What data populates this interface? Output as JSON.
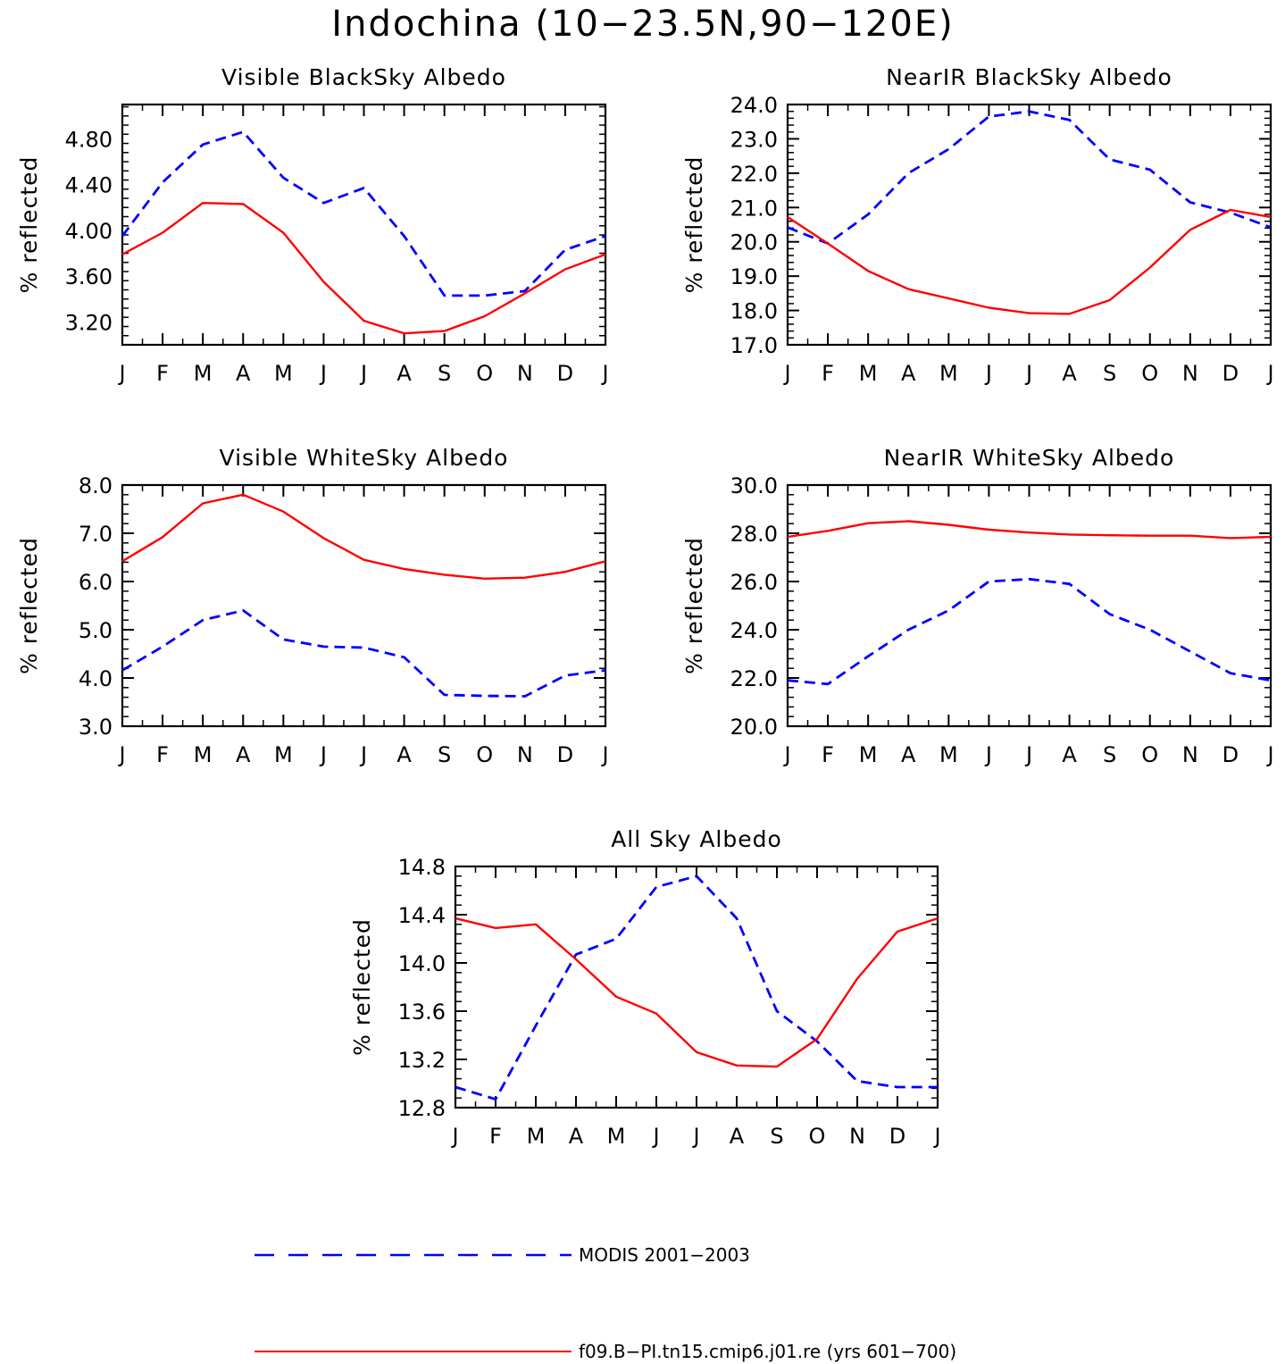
{
  "title": "Indochina (10−23.5N,90−120E)",
  "legend": [
    {
      "label": "MODIS 2001−2003",
      "color": "#0000ff",
      "dash": true
    },
    {
      "label": "f09.B−PI.tn15.cmip6.j01.re (yrs 601−700)",
      "color": "#ff0000",
      "dash": false
    }
  ],
  "chart_data": [
    {
      "type": "line",
      "title": "Visible BlackSky Albedo",
      "ylabel": "% reflected",
      "categories": [
        "J",
        "F",
        "M",
        "A",
        "M",
        "J",
        "J",
        "A",
        "S",
        "O",
        "N",
        "D",
        "J"
      ],
      "ylim": [
        3.0,
        5.1
      ],
      "yticks": [
        "3.20",
        "3.60",
        "4.00",
        "4.40",
        "4.80"
      ],
      "series": [
        {
          "name": "MODIS 2001−2003",
          "color": "#0000ff",
          "dash": true,
          "values": [
            3.95,
            4.42,
            4.75,
            4.86,
            4.46,
            4.24,
            4.37,
            3.95,
            3.43,
            3.43,
            3.47,
            3.83,
            3.95
          ]
        },
        {
          "name": "f09.B−PI.tn15.cmip6.j01.re (yrs 601−700)",
          "color": "#ff0000",
          "dash": false,
          "values": [
            3.79,
            3.98,
            4.24,
            4.23,
            3.98,
            3.55,
            3.21,
            3.1,
            3.12,
            3.25,
            3.45,
            3.66,
            3.79
          ]
        }
      ]
    },
    {
      "type": "line",
      "title": "NearIR BlackSky Albedo",
      "ylabel": "% reflected",
      "categories": [
        "J",
        "F",
        "M",
        "A",
        "M",
        "J",
        "J",
        "A",
        "S",
        "O",
        "N",
        "D",
        "J"
      ],
      "ylim": [
        17.0,
        24.0
      ],
      "yticks": [
        "17.0",
        "18.0",
        "19.0",
        "20.0",
        "21.0",
        "22.0",
        "23.0",
        "24.0"
      ],
      "series": [
        {
          "name": "MODIS 2001−2003",
          "color": "#0000ff",
          "dash": true,
          "values": [
            20.42,
            19.95,
            20.8,
            22.0,
            22.7,
            23.65,
            23.8,
            23.55,
            22.4,
            22.1,
            21.15,
            20.85,
            20.42
          ]
        },
        {
          "name": "f09.B−PI.tn15.cmip6.j01.re (yrs 601−700)",
          "color": "#ff0000",
          "dash": false,
          "values": [
            20.72,
            19.95,
            19.15,
            18.62,
            18.35,
            18.08,
            17.92,
            17.9,
            18.3,
            19.25,
            20.35,
            20.93,
            20.72
          ]
        }
      ]
    },
    {
      "type": "line",
      "title": "Visible WhiteSky Albedo",
      "ylabel": "% reflected",
      "categories": [
        "J",
        "F",
        "M",
        "A",
        "M",
        "J",
        "J",
        "A",
        "S",
        "O",
        "N",
        "D",
        "J"
      ],
      "ylim": [
        3.0,
        8.0
      ],
      "yticks": [
        "3.0",
        "4.0",
        "5.0",
        "6.0",
        "7.0",
        "8.0"
      ],
      "series": [
        {
          "name": "MODIS 2001−2003",
          "color": "#0000ff",
          "dash": true,
          "values": [
            4.16,
            4.65,
            5.2,
            5.4,
            4.8,
            4.65,
            4.63,
            4.43,
            3.65,
            3.63,
            3.62,
            4.05,
            4.16
          ]
        },
        {
          "name": "f09.B−PI.tn15.cmip6.j01.re (yrs 601−700)",
          "color": "#ff0000",
          "dash": false,
          "values": [
            6.42,
            6.92,
            7.62,
            7.8,
            7.45,
            6.9,
            6.45,
            6.26,
            6.14,
            6.06,
            6.08,
            6.2,
            6.42
          ]
        }
      ]
    },
    {
      "type": "line",
      "title": "NearIR WhiteSky Albedo",
      "ylabel": "% reflected",
      "categories": [
        "J",
        "F",
        "M",
        "A",
        "M",
        "J",
        "J",
        "A",
        "S",
        "O",
        "N",
        "D",
        "J"
      ],
      "ylim": [
        20.0,
        30.0
      ],
      "yticks": [
        "20.0",
        "22.0",
        "24.0",
        "26.0",
        "28.0",
        "30.0"
      ],
      "series": [
        {
          "name": "MODIS 2001−2003",
          "color": "#0000ff",
          "dash": true,
          "values": [
            21.9,
            21.75,
            22.9,
            24.0,
            24.8,
            26.0,
            26.1,
            25.9,
            24.65,
            24.0,
            23.1,
            22.2,
            21.9
          ]
        },
        {
          "name": "f09.B−PI.tn15.cmip6.j01.re (yrs 601−700)",
          "color": "#ff0000",
          "dash": false,
          "values": [
            27.85,
            28.1,
            28.42,
            28.5,
            28.35,
            28.15,
            28.03,
            27.95,
            27.92,
            27.9,
            27.9,
            27.8,
            27.85
          ]
        }
      ]
    },
    {
      "type": "line",
      "title": "All Sky Albedo",
      "ylabel": "% reflected",
      "categories": [
        "J",
        "F",
        "M",
        "A",
        "M",
        "J",
        "J",
        "A",
        "S",
        "O",
        "N",
        "D",
        "J"
      ],
      "ylim": [
        12.8,
        14.8
      ],
      "yticks": [
        "12.8",
        "13.2",
        "13.6",
        "14.0",
        "14.4",
        "14.8"
      ],
      "series": [
        {
          "name": "MODIS 2001−2003",
          "color": "#0000ff",
          "dash": true,
          "values": [
            12.97,
            12.87,
            13.48,
            14.07,
            14.2,
            14.63,
            14.72,
            14.37,
            13.6,
            13.35,
            13.02,
            12.97,
            12.97
          ]
        },
        {
          "name": "f09.B−PI.tn15.cmip6.j01.re (yrs 601−700)",
          "color": "#ff0000",
          "dash": false,
          "values": [
            14.37,
            14.29,
            14.32,
            14.03,
            13.72,
            13.58,
            13.26,
            13.15,
            13.14,
            13.37,
            13.87,
            14.26,
            14.37
          ]
        }
      ]
    }
  ]
}
